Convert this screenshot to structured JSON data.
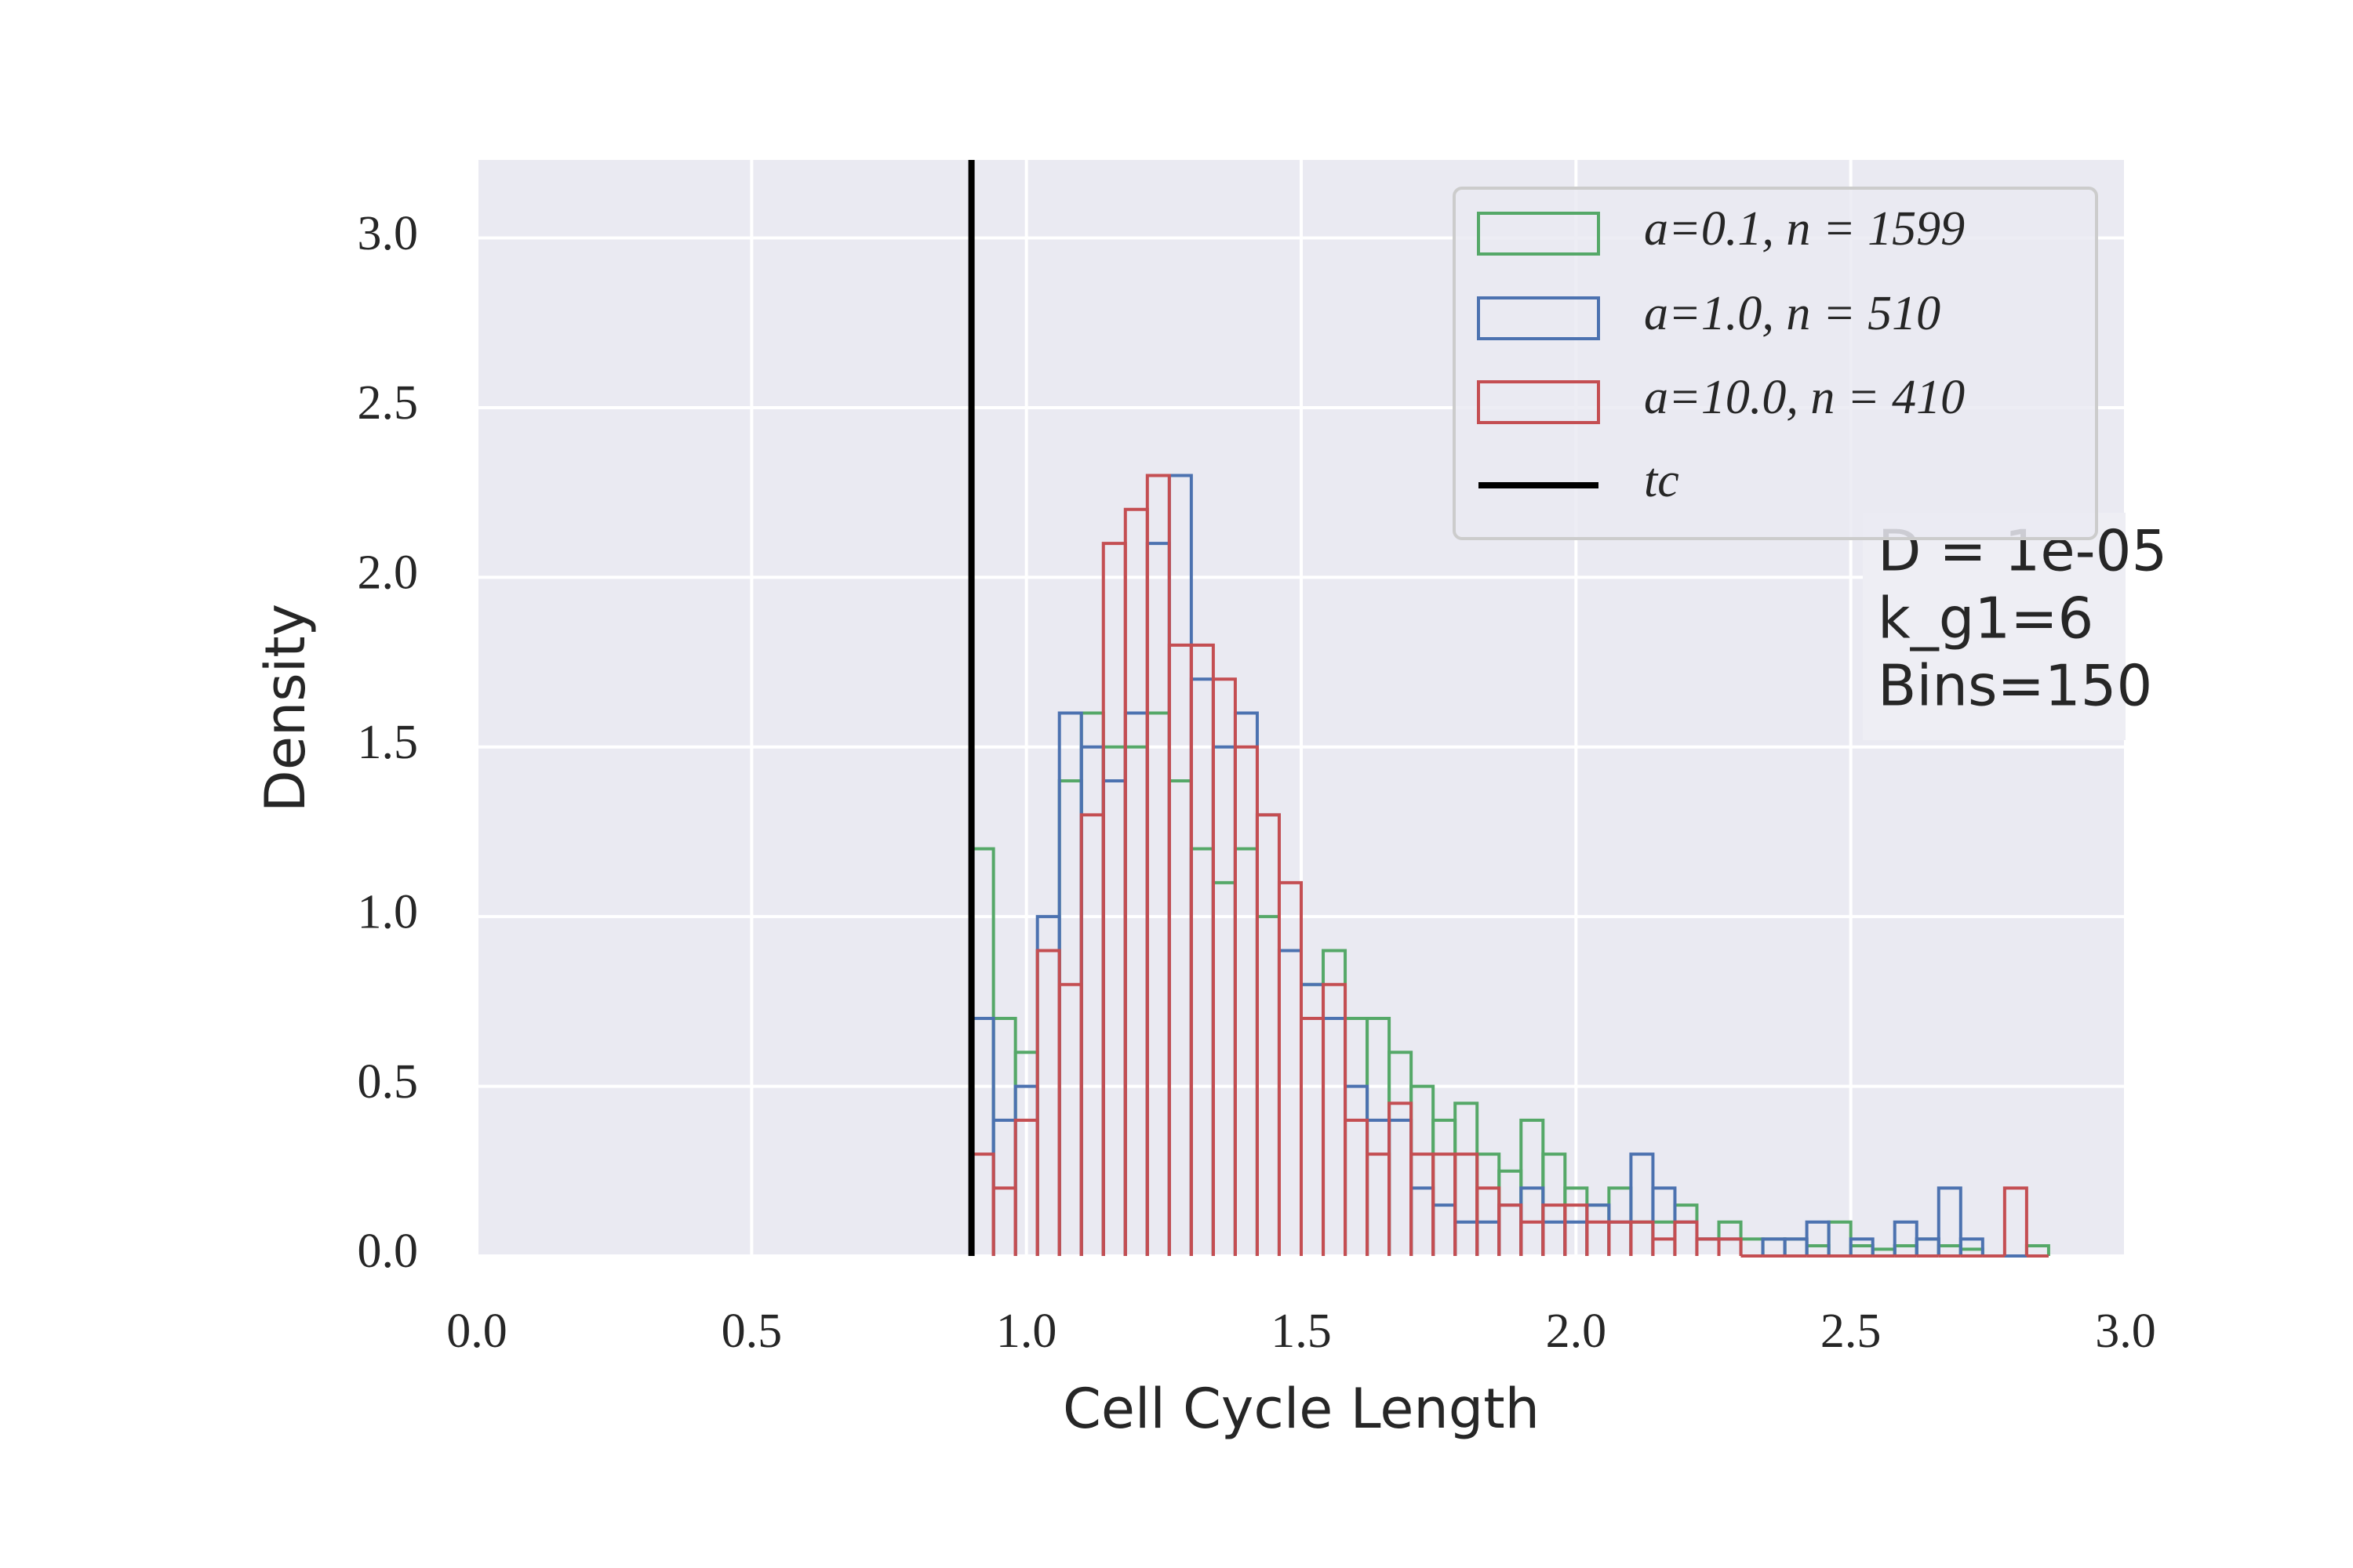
{
  "chart_data": {
    "type": "histogram",
    "x_label": "Cell Cycle Length",
    "y_label": "Density",
    "bins": [
      0.9,
      0.94,
      0.98,
      1.02,
      1.06,
      1.1,
      1.14,
      1.18,
      1.22,
      1.26,
      1.3,
      1.34,
      1.38,
      1.42,
      1.46,
      1.5,
      1.54,
      1.58,
      1.62,
      1.66,
      1.7,
      1.74,
      1.78,
      1.82,
      1.86,
      1.9,
      1.94,
      1.98,
      2.02,
      2.06,
      2.1,
      2.14,
      2.18,
      2.22,
      2.26,
      2.3,
      2.34,
      2.38,
      2.42,
      2.46,
      2.5,
      2.54,
      2.58,
      2.62,
      2.66,
      2.7,
      2.74,
      2.78,
      2.82,
      2.86
    ],
    "series": [
      {
        "name": "a=0.1, n = 1599",
        "color": "#55a868",
        "values": [
          1.2,
          0.7,
          0.6,
          0.9,
          1.4,
          1.6,
          1.5,
          1.5,
          1.6,
          1.4,
          1.2,
          1.1,
          1.2,
          1.0,
          0.9,
          0.8,
          0.9,
          0.7,
          0.7,
          0.6,
          0.5,
          0.4,
          0.45,
          0.3,
          0.25,
          0.4,
          0.3,
          0.2,
          0.15,
          0.2,
          0.1,
          0.1,
          0.15,
          0.05,
          0.1,
          0.05,
          0.05,
          0.05,
          0.03,
          0.1,
          0.03,
          0.02,
          0.03,
          0.05,
          0.03,
          0.02,
          0,
          0,
          0.03
        ]
      },
      {
        "name": "a=1.0, n = 510",
        "color": "#4c72b0",
        "values": [
          0.7,
          0.4,
          0.5,
          1.0,
          1.6,
          1.5,
          1.4,
          1.6,
          2.1,
          2.3,
          1.7,
          1.5,
          1.6,
          1.3,
          0.9,
          0.8,
          0.7,
          0.5,
          0.4,
          0.4,
          0.2,
          0.15,
          0.1,
          0.1,
          0.15,
          0.2,
          0.1,
          0.1,
          0.15,
          0.1,
          0.3,
          0.2,
          0.1,
          0.05,
          0.05,
          0,
          0.05,
          0.05,
          0.1,
          0,
          0.05,
          0,
          0.1,
          0.05,
          0.2,
          0.05,
          0,
          0,
          0
        ]
      },
      {
        "name": "a=10.0, n = 410",
        "color": "#c44e52",
        "values": [
          0.3,
          0.2,
          0.4,
          0.9,
          0.8,
          1.3,
          2.1,
          2.2,
          2.3,
          1.8,
          1.8,
          1.7,
          1.5,
          1.3,
          1.1,
          0.7,
          0.8,
          0.4,
          0.3,
          0.45,
          0.3,
          0.3,
          0.3,
          0.2,
          0.15,
          0.1,
          0.15,
          0.15,
          0.1,
          0.1,
          0.1,
          0.05,
          0.1,
          0.05,
          0.05,
          0,
          0,
          0,
          0,
          0,
          0,
          0,
          0,
          0,
          0,
          0,
          0,
          0.2,
          0
        ]
      }
    ],
    "threshold": {
      "name": "tc",
      "x": 0.9,
      "color": "#000000"
    },
    "annotation": [
      "D = 1e-05",
      "k_g1=6",
      "Bins=150"
    ],
    "xlim": [
      0,
      3
    ],
    "ylim": [
      0,
      3.23
    ],
    "xticks": [
      {
        "value": 0,
        "label": "0.0"
      },
      0.5,
      {
        "value": 1,
        "label": "1.0"
      },
      1.5,
      {
        "value": 2,
        "label": "2.0"
      },
      2.5,
      {
        "value": 3,
        "label": "3.0"
      }
    ],
    "yticks": [
      {
        "value": 0,
        "label": "0.0"
      },
      0.5,
      {
        "value": 1,
        "label": "1.0"
      },
      1.5,
      {
        "value": 2,
        "label": "2.0"
      },
      2.5,
      {
        "value": 3,
        "label": "3.0"
      }
    ],
    "grid": true,
    "legend": "upper right",
    "background": "#eaeaf2"
  }
}
